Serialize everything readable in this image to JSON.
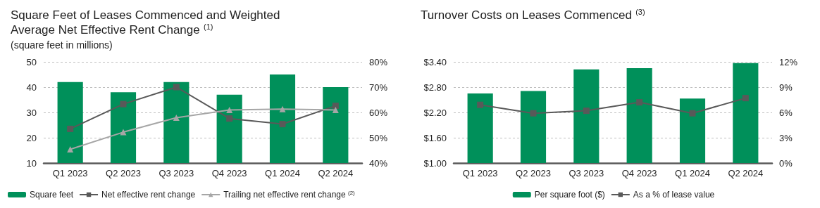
{
  "chart_data": [
    {
      "type": "bar",
      "title": "Square Feet of Leases Commenced and Weighted Average Net Effective Rent Change $^{(1)}$",
      "subtitle": "(square feet in millions)",
      "categories": [
        "Q1 2023",
        "Q2 2023",
        "Q3 2023",
        "Q4 2023",
        "Q1 2024",
        "Q2 2024"
      ],
      "series": [
        {
          "name": "Square feet",
          "color": "#00905a",
          "values": [
            42,
            38,
            42,
            37,
            45,
            40
          ]
        },
        {
          "name": "Net effective rent change",
          "type": "line",
          "axis": "y2",
          "marker": "square",
          "color": "#595959",
          "values": [
            53.5,
            63.3,
            70,
            57.6,
            55.4,
            62.6
          ]
        },
        {
          "name": "Trailing net effective rent change $^{(2)}$",
          "type": "line",
          "axis": "y2",
          "marker": "triangle",
          "color": "#a6a6a6",
          "values": [
            45.4,
            52.2,
            57.9,
            61,
            61.3,
            61
          ]
        }
      ],
      "ylim": [
        10,
        50
      ],
      "yticks": [
        10,
        20,
        30,
        40,
        50
      ],
      "y2lim": [
        40,
        80
      ],
      "y2ticks": [
        {
          "value": 40,
          "label": "40%"
        },
        {
          "value": 50,
          "label": "50%"
        },
        {
          "value": 60,
          "label": "60%"
        },
        {
          "value": 70,
          "label": "70%"
        },
        {
          "value": 80,
          "label": "80%"
        }
      ],
      "grid": "y",
      "legend": "bottom left",
      "line_style": "solid"
    },
    {
      "type": "bar",
      "title": "Turnover Costs on Leases Commenced $^{(3)}$",
      "categories": [
        "Q1 2023",
        "Q2 2023",
        "Q3 2023",
        "Q4 2023",
        "Q1 2024",
        "Q2 2024"
      ],
      "series": [
        {
          "name": "Per square foot ($)",
          "color": "#00905a",
          "values": [
            2.65,
            2.71,
            3.22,
            3.25,
            2.53,
            3.37
          ]
        },
        {
          "name": "As a % of lease value",
          "type": "line",
          "axis": "y2",
          "marker": "square",
          "color": "#595959",
          "values": [
            6.9,
            5.9,
            6.2,
            7.2,
            5.9,
            7.7
          ]
        }
      ],
      "ylim": [
        1,
        3.4
      ],
      "yticks": [
        {
          "value": 1,
          "label": "$1.00"
        },
        {
          "value": 1.6,
          "label": "$1.60"
        },
        {
          "value": 2.2,
          "label": "$2.20"
        },
        {
          "value": 2.8,
          "label": "$2.80"
        },
        {
          "value": 3.4,
          "label": "$3.40"
        }
      ],
      "y2lim": [
        0,
        12
      ],
      "y2ticks": [
        {
          "value": 0,
          "label": "0%"
        },
        {
          "value": 3,
          "label": "3%"
        },
        {
          "value": 6,
          "label": "6%"
        },
        {
          "value": 9,
          "label": "9%"
        },
        {
          "value": 12,
          "label": "12%"
        }
      ],
      "grid": "y",
      "legend": "bottom",
      "line_style": "solid"
    }
  ]
}
